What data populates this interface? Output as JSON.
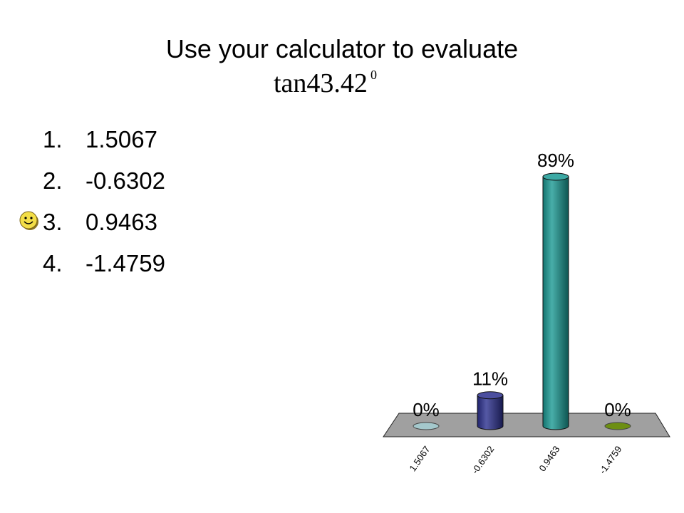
{
  "slide": {
    "title": "Use your calculator to evaluate",
    "expression": {
      "base": "tan43.42",
      "superscript": "0"
    }
  },
  "answers": [
    {
      "number": "1.",
      "text": "1.5067",
      "correct": false
    },
    {
      "number": "2.",
      "text": "-0.6302",
      "correct": false
    },
    {
      "number": "3.",
      "text": "0.9463",
      "correct": true
    },
    {
      "number": "4.",
      "text": "-1.4759",
      "correct": false
    }
  ],
  "correct_marker_icon": "smiley-face-icon",
  "chart_data": {
    "type": "bar",
    "style": "3d-cylinder",
    "categories": [
      "1.5067",
      "-0.6302",
      "0.9463",
      "-1.4759"
    ],
    "values": [
      0,
      11,
      89,
      0
    ],
    "data_labels": [
      "0%",
      "11%",
      "89%",
      "0%"
    ],
    "value_unit": "%",
    "ylim": [
      0,
      89
    ],
    "colors": [
      "#a4c8cc",
      "#2b2f8e",
      "#1a9a94",
      "#6d8f12"
    ],
    "floor_color": "#a0a0a0",
    "title": "",
    "xlabel": "",
    "ylabel": "",
    "legend": "none",
    "grid": false
  }
}
